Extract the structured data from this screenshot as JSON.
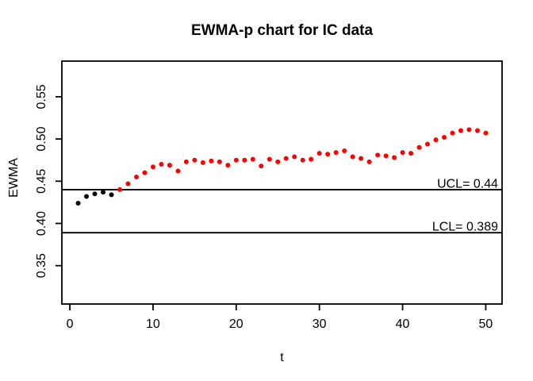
{
  "chart_data": {
    "type": "scatter",
    "title": "EWMA-p chart for IC data",
    "xlabel": "t",
    "ylabel": "EWMA",
    "x": [
      1,
      2,
      3,
      4,
      5,
      6,
      7,
      8,
      9,
      10,
      11,
      12,
      13,
      14,
      15,
      16,
      17,
      18,
      19,
      20,
      21,
      22,
      23,
      24,
      25,
      26,
      27,
      28,
      29,
      30,
      31,
      32,
      33,
      34,
      35,
      36,
      37,
      38,
      39,
      40,
      41,
      42,
      43,
      44,
      45,
      46,
      47,
      48,
      49,
      50
    ],
    "series": [
      {
        "name": "EWMA",
        "values": [
          0.424,
          0.432,
          0.435,
          0.437,
          0.434,
          0.44,
          0.447,
          0.455,
          0.46,
          0.467,
          0.47,
          0.469,
          0.462,
          0.473,
          0.475,
          0.472,
          0.474,
          0.473,
          0.469,
          0.475,
          0.475,
          0.476,
          0.468,
          0.476,
          0.473,
          0.477,
          0.479,
          0.475,
          0.476,
          0.483,
          0.482,
          0.484,
          0.486,
          0.479,
          0.477,
          0.473,
          0.481,
          0.48,
          0.478,
          0.484,
          0.483,
          0.49,
          0.494,
          0.499,
          0.502,
          0.507,
          0.51,
          0.511,
          0.51,
          0.507
        ]
      }
    ],
    "point_styles": {
      "first_n_black": 5,
      "black_color": "#000000",
      "signal_color": "#FF0000"
    },
    "control_limits": {
      "ucl": {
        "value": 0.44,
        "label": "UCL= 0.44"
      },
      "lcl": {
        "value": 0.389,
        "label": "LCL= 0.389"
      }
    },
    "x_ticks": [
      0,
      10,
      20,
      30,
      40,
      50
    ],
    "x_tick_labels": [
      "0",
      "10",
      "20",
      "30",
      "40",
      "50"
    ],
    "y_ticks": [
      0.35,
      0.4,
      0.45,
      0.5,
      0.55
    ],
    "y_tick_labels": [
      "0.35",
      "0.40",
      "0.45",
      "0.50",
      "0.55"
    ],
    "xlim": [
      -0.96,
      51.96
    ],
    "ylim": [
      0.3046,
      0.5922
    ],
    "grid": false,
    "legend": "none",
    "background_color": "#FFFFFF",
    "axis_color": "#000000"
  }
}
